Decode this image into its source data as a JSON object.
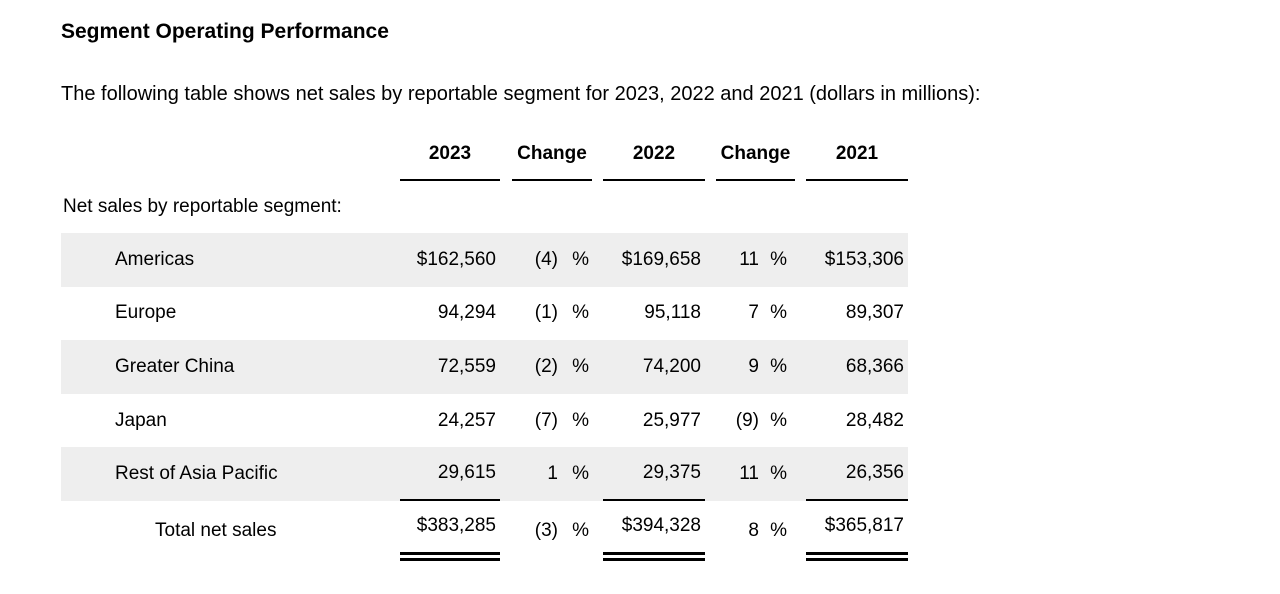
{
  "page": {
    "title": "Segment Operating Performance",
    "intro": "The following table shows net sales by reportable segment for 2023, 2022 and 2021 (dollars in millions):"
  },
  "table": {
    "columns": [
      "2023",
      "Change",
      "2022",
      "Change",
      "2021"
    ],
    "section_label": "Net sales by reportable segment:",
    "percent_sign": "%",
    "rows": [
      {
        "label": "Americas",
        "v2023": "$162,560",
        "chg1": "(4)",
        "v2022": "$169,658",
        "chg2": "11",
        "v2021": "$153,306"
      },
      {
        "label": "Europe",
        "v2023": "94,294",
        "chg1": "(1)",
        "v2022": "95,118",
        "chg2": "7",
        "v2021": "89,307"
      },
      {
        "label": "Greater China",
        "v2023": "72,559",
        "chg1": "(2)",
        "v2022": "74,200",
        "chg2": "9",
        "v2021": "68,366"
      },
      {
        "label": "Japan",
        "v2023": "24,257",
        "chg1": "(7)",
        "v2022": "25,977",
        "chg2": "(9)",
        "v2021": "28,482"
      },
      {
        "label": "Rest of Asia Pacific",
        "v2023": "29,615",
        "chg1": "1",
        "v2022": "29,375",
        "chg2": "11",
        "v2021": "26,356"
      }
    ],
    "total": {
      "label": "Total net sales",
      "v2023": "$383,285",
      "chg1": "(3)",
      "v2022": "$394,328",
      "chg2": "8",
      "v2021": "$365,817"
    }
  },
  "colors": {
    "stripe": "#eeeeee",
    "text": "#000000",
    "background": "#ffffff"
  }
}
